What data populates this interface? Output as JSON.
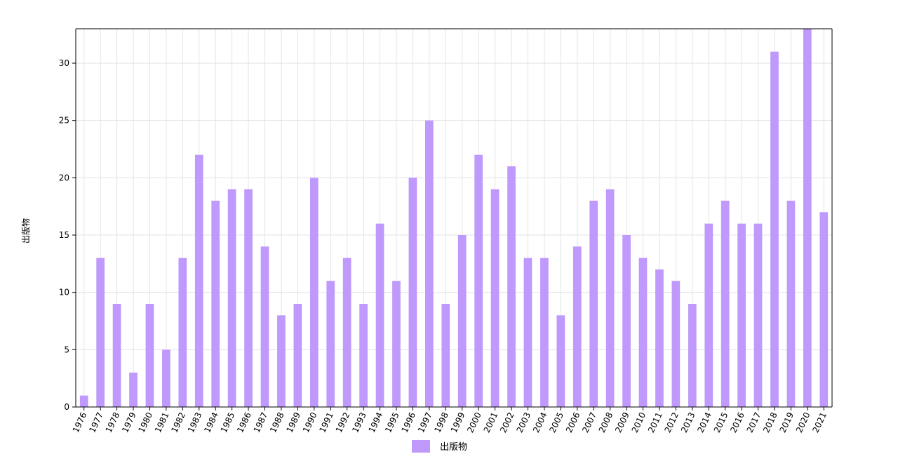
{
  "chart_data": {
    "type": "bar",
    "title": "",
    "xlabel": "",
    "ylabel": "出版物",
    "ylim": [
      0,
      33
    ],
    "yticks": [
      0,
      5,
      10,
      15,
      20,
      25,
      30
    ],
    "grid": true,
    "legend_position": "bottom-center",
    "bar_color": "#bf99fc",
    "categories": [
      "1976",
      "1977",
      "1978",
      "1979",
      "1980",
      "1981",
      "1982",
      "1983",
      "1984",
      "1985",
      "1986",
      "1987",
      "1988",
      "1989",
      "1990",
      "1991",
      "1992",
      "1993",
      "1994",
      "1995",
      "1996",
      "1997",
      "1998",
      "1999",
      "2000",
      "2001",
      "2002",
      "2003",
      "2004",
      "2005",
      "2006",
      "2007",
      "2008",
      "2009",
      "2010",
      "2011",
      "2012",
      "2013",
      "2014",
      "2015",
      "2016",
      "2017",
      "2018",
      "2019",
      "2020",
      "2021"
    ],
    "series": [
      {
        "name": "出版物",
        "values": [
          1,
          13,
          9,
          3,
          9,
          5,
          13,
          22,
          18,
          19,
          19,
          14,
          8,
          9,
          20,
          11,
          13,
          9,
          16,
          11,
          20,
          25,
          9,
          15,
          22,
          19,
          21,
          13,
          13,
          8,
          14,
          18,
          19,
          15,
          13,
          12,
          11,
          9,
          16,
          18,
          16,
          16,
          31,
          18,
          33,
          17
        ]
      }
    ]
  }
}
